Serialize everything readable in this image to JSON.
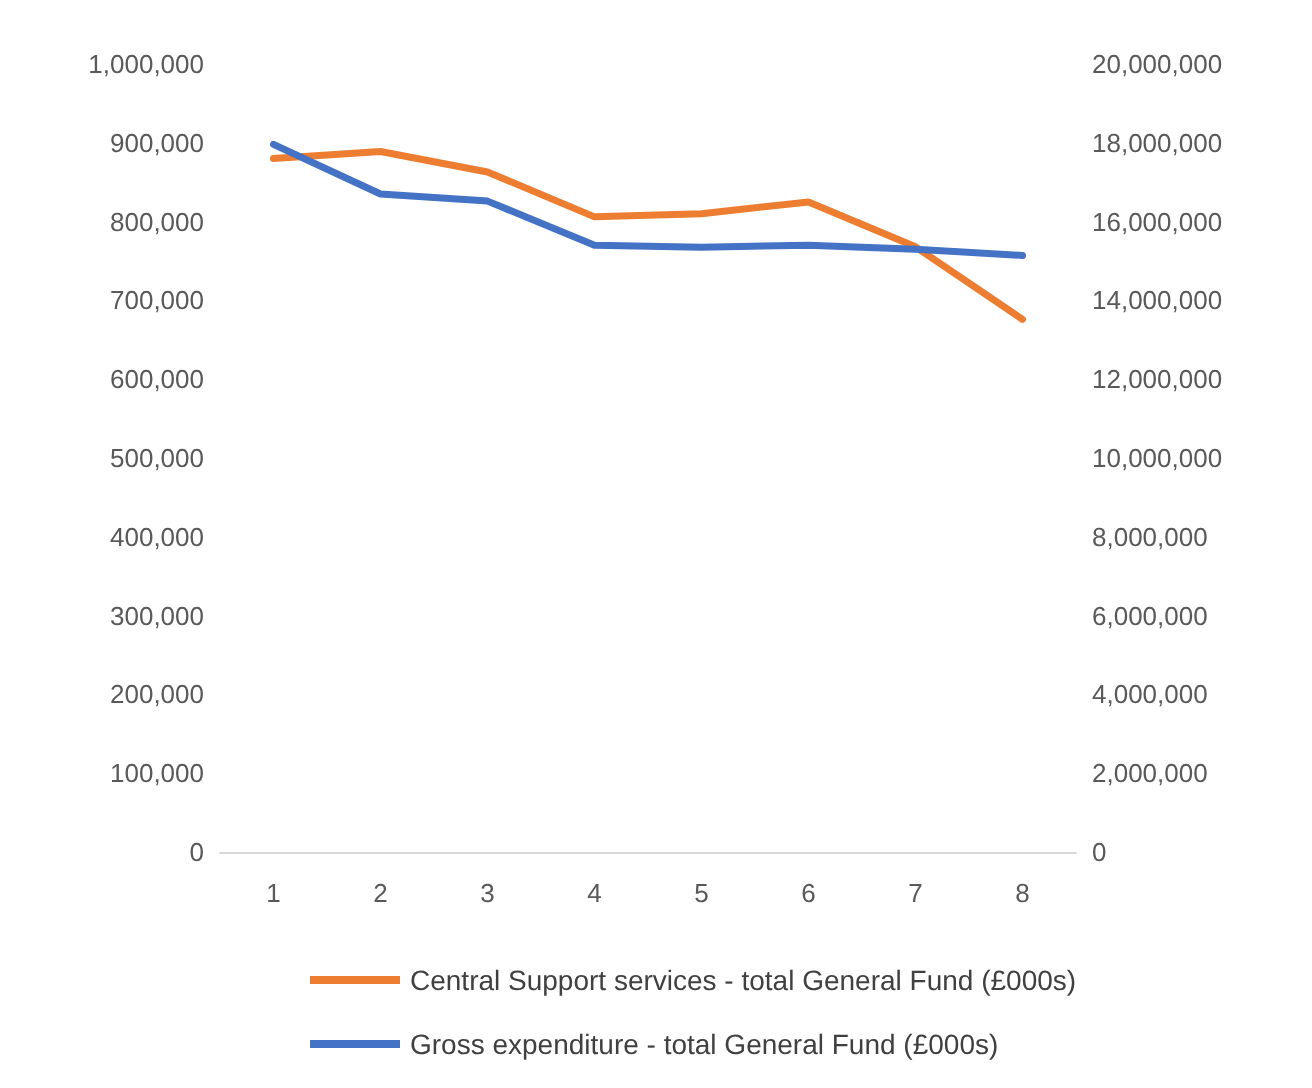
{
  "chart_data": {
    "type": "line",
    "categories": [
      "1",
      "2",
      "3",
      "4",
      "5",
      "6",
      "7",
      "8"
    ],
    "series": [
      {
        "name": "Central Support services - total General Fund (£000s)",
        "color": "#ed7d31",
        "values": [
          880000,
          889000,
          863000,
          806000,
          810000,
          825000,
          768000,
          676000
        ]
      },
      {
        "name": "Gross expenditure - total General Fund (£000s)",
        "color": "#4472c4",
        "axis": "y2",
        "values": [
          17960000,
          16700000,
          16520000,
          15400000,
          15350000,
          15400000,
          15300000,
          15140000
        ]
      }
    ],
    "ylim": [
      0,
      1000000
    ],
    "yticks": [
      0,
      {
        "value": 100000,
        "label": "100,000"
      },
      {
        "value": 200000,
        "label": "200,000"
      },
      {
        "value": 300000,
        "label": "300,000"
      },
      {
        "value": 400000,
        "label": "400,000"
      },
      {
        "value": 500000,
        "label": "500,000"
      },
      {
        "value": 600000,
        "label": "600,000"
      },
      {
        "value": 700000,
        "label": "700,000"
      },
      {
        "value": 800000,
        "label": "800,000"
      },
      {
        "value": 900000,
        "label": "900,000"
      },
      {
        "value": 1000000,
        "label": "1,000,000"
      }
    ],
    "y2lim": [
      0,
      20000000
    ],
    "y2ticks": [
      0,
      {
        "value": 2000000,
        "label": "2,000,000"
      },
      {
        "value": 4000000,
        "label": "4,000,000"
      },
      {
        "value": 6000000,
        "label": "6,000,000"
      },
      {
        "value": 8000000,
        "label": "8,000,000"
      },
      {
        "value": 10000000,
        "label": "10,000,000"
      },
      {
        "value": 12000000,
        "label": "12,000,000"
      },
      {
        "value": 14000000,
        "label": "14,000,000"
      },
      {
        "value": 16000000,
        "label": "16,000,000"
      },
      {
        "value": 18000000,
        "label": "18,000,000"
      },
      {
        "value": 20000000,
        "label": "20,000,000"
      }
    ],
    "grid": false,
    "legend": "bottom",
    "marker": "none",
    "line_style": "solid"
  }
}
